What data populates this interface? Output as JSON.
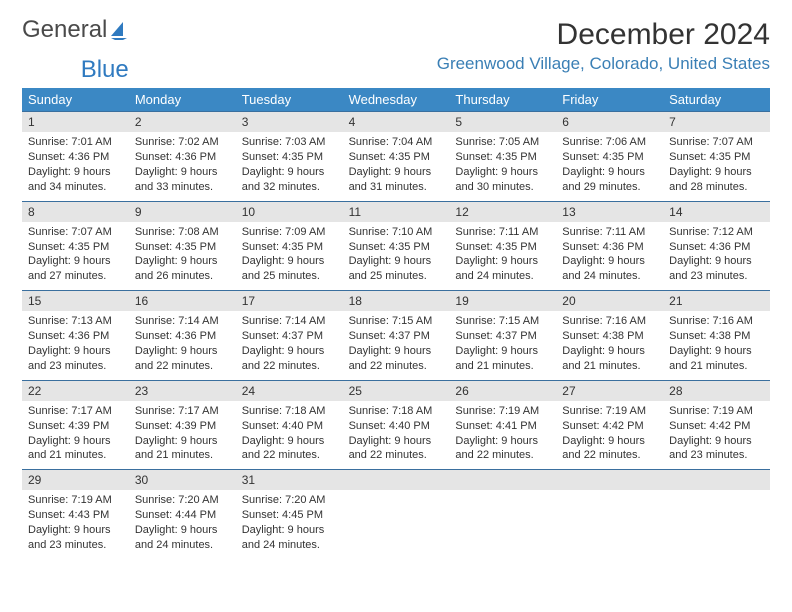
{
  "logo": {
    "text_a": "General",
    "text_b": "Blue"
  },
  "header": {
    "month_title": "December 2024",
    "location": "Greenwood Village, Colorado, United States"
  },
  "colors": {
    "header_bg": "#3b88c4",
    "row_border": "#3a6f9e",
    "daynum_bg": "#e5e5e5",
    "location_color": "#3a7fb5",
    "logo_blue": "#2f7ac0"
  },
  "weekdays": [
    "Sunday",
    "Monday",
    "Tuesday",
    "Wednesday",
    "Thursday",
    "Friday",
    "Saturday"
  ],
  "days": [
    {
      "n": "1",
      "sunrise": "Sunrise: 7:01 AM",
      "sunset": "Sunset: 4:36 PM",
      "d1": "Daylight: 9 hours",
      "d2": "and 34 minutes."
    },
    {
      "n": "2",
      "sunrise": "Sunrise: 7:02 AM",
      "sunset": "Sunset: 4:36 PM",
      "d1": "Daylight: 9 hours",
      "d2": "and 33 minutes."
    },
    {
      "n": "3",
      "sunrise": "Sunrise: 7:03 AM",
      "sunset": "Sunset: 4:35 PM",
      "d1": "Daylight: 9 hours",
      "d2": "and 32 minutes."
    },
    {
      "n": "4",
      "sunrise": "Sunrise: 7:04 AM",
      "sunset": "Sunset: 4:35 PM",
      "d1": "Daylight: 9 hours",
      "d2": "and 31 minutes."
    },
    {
      "n": "5",
      "sunrise": "Sunrise: 7:05 AM",
      "sunset": "Sunset: 4:35 PM",
      "d1": "Daylight: 9 hours",
      "d2": "and 30 minutes."
    },
    {
      "n": "6",
      "sunrise": "Sunrise: 7:06 AM",
      "sunset": "Sunset: 4:35 PM",
      "d1": "Daylight: 9 hours",
      "d2": "and 29 minutes."
    },
    {
      "n": "7",
      "sunrise": "Sunrise: 7:07 AM",
      "sunset": "Sunset: 4:35 PM",
      "d1": "Daylight: 9 hours",
      "d2": "and 28 minutes."
    },
    {
      "n": "8",
      "sunrise": "Sunrise: 7:07 AM",
      "sunset": "Sunset: 4:35 PM",
      "d1": "Daylight: 9 hours",
      "d2": "and 27 minutes."
    },
    {
      "n": "9",
      "sunrise": "Sunrise: 7:08 AM",
      "sunset": "Sunset: 4:35 PM",
      "d1": "Daylight: 9 hours",
      "d2": "and 26 minutes."
    },
    {
      "n": "10",
      "sunrise": "Sunrise: 7:09 AM",
      "sunset": "Sunset: 4:35 PM",
      "d1": "Daylight: 9 hours",
      "d2": "and 25 minutes."
    },
    {
      "n": "11",
      "sunrise": "Sunrise: 7:10 AM",
      "sunset": "Sunset: 4:35 PM",
      "d1": "Daylight: 9 hours",
      "d2": "and 25 minutes."
    },
    {
      "n": "12",
      "sunrise": "Sunrise: 7:11 AM",
      "sunset": "Sunset: 4:35 PM",
      "d1": "Daylight: 9 hours",
      "d2": "and 24 minutes."
    },
    {
      "n": "13",
      "sunrise": "Sunrise: 7:11 AM",
      "sunset": "Sunset: 4:36 PM",
      "d1": "Daylight: 9 hours",
      "d2": "and 24 minutes."
    },
    {
      "n": "14",
      "sunrise": "Sunrise: 7:12 AM",
      "sunset": "Sunset: 4:36 PM",
      "d1": "Daylight: 9 hours",
      "d2": "and 23 minutes."
    },
    {
      "n": "15",
      "sunrise": "Sunrise: 7:13 AM",
      "sunset": "Sunset: 4:36 PM",
      "d1": "Daylight: 9 hours",
      "d2": "and 23 minutes."
    },
    {
      "n": "16",
      "sunrise": "Sunrise: 7:14 AM",
      "sunset": "Sunset: 4:36 PM",
      "d1": "Daylight: 9 hours",
      "d2": "and 22 minutes."
    },
    {
      "n": "17",
      "sunrise": "Sunrise: 7:14 AM",
      "sunset": "Sunset: 4:37 PM",
      "d1": "Daylight: 9 hours",
      "d2": "and 22 minutes."
    },
    {
      "n": "18",
      "sunrise": "Sunrise: 7:15 AM",
      "sunset": "Sunset: 4:37 PM",
      "d1": "Daylight: 9 hours",
      "d2": "and 22 minutes."
    },
    {
      "n": "19",
      "sunrise": "Sunrise: 7:15 AM",
      "sunset": "Sunset: 4:37 PM",
      "d1": "Daylight: 9 hours",
      "d2": "and 21 minutes."
    },
    {
      "n": "20",
      "sunrise": "Sunrise: 7:16 AM",
      "sunset": "Sunset: 4:38 PM",
      "d1": "Daylight: 9 hours",
      "d2": "and 21 minutes."
    },
    {
      "n": "21",
      "sunrise": "Sunrise: 7:16 AM",
      "sunset": "Sunset: 4:38 PM",
      "d1": "Daylight: 9 hours",
      "d2": "and 21 minutes."
    },
    {
      "n": "22",
      "sunrise": "Sunrise: 7:17 AM",
      "sunset": "Sunset: 4:39 PM",
      "d1": "Daylight: 9 hours",
      "d2": "and 21 minutes."
    },
    {
      "n": "23",
      "sunrise": "Sunrise: 7:17 AM",
      "sunset": "Sunset: 4:39 PM",
      "d1": "Daylight: 9 hours",
      "d2": "and 21 minutes."
    },
    {
      "n": "24",
      "sunrise": "Sunrise: 7:18 AM",
      "sunset": "Sunset: 4:40 PM",
      "d1": "Daylight: 9 hours",
      "d2": "and 22 minutes."
    },
    {
      "n": "25",
      "sunrise": "Sunrise: 7:18 AM",
      "sunset": "Sunset: 4:40 PM",
      "d1": "Daylight: 9 hours",
      "d2": "and 22 minutes."
    },
    {
      "n": "26",
      "sunrise": "Sunrise: 7:19 AM",
      "sunset": "Sunset: 4:41 PM",
      "d1": "Daylight: 9 hours",
      "d2": "and 22 minutes."
    },
    {
      "n": "27",
      "sunrise": "Sunrise: 7:19 AM",
      "sunset": "Sunset: 4:42 PM",
      "d1": "Daylight: 9 hours",
      "d2": "and 22 minutes."
    },
    {
      "n": "28",
      "sunrise": "Sunrise: 7:19 AM",
      "sunset": "Sunset: 4:42 PM",
      "d1": "Daylight: 9 hours",
      "d2": "and 23 minutes."
    },
    {
      "n": "29",
      "sunrise": "Sunrise: 7:19 AM",
      "sunset": "Sunset: 4:43 PM",
      "d1": "Daylight: 9 hours",
      "d2": "and 23 minutes."
    },
    {
      "n": "30",
      "sunrise": "Sunrise: 7:20 AM",
      "sunset": "Sunset: 4:44 PM",
      "d1": "Daylight: 9 hours",
      "d2": "and 24 minutes."
    },
    {
      "n": "31",
      "sunrise": "Sunrise: 7:20 AM",
      "sunset": "Sunset: 4:45 PM",
      "d1": "Daylight: 9 hours",
      "d2": "and 24 minutes."
    }
  ],
  "trailing_empty": 4
}
